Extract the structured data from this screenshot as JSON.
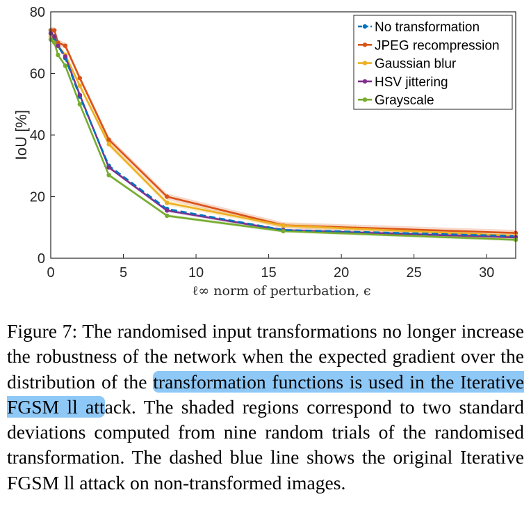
{
  "chart_data": {
    "type": "line",
    "xlabel": "ℓ∞ norm of perturbation, ϵ",
    "ylabel": "IoU [%]",
    "xlim": [
      0,
      32
    ],
    "ylim": [
      0,
      80
    ],
    "xticks": [
      0,
      5,
      10,
      15,
      20,
      25,
      30
    ],
    "yticks": [
      0,
      20,
      40,
      60,
      80
    ],
    "x": [
      0,
      0.25,
      0.5,
      1,
      2,
      4,
      8,
      16,
      32
    ],
    "legend_position": "top-right",
    "series": [
      {
        "name": "No transformation",
        "color": "#0072BD",
        "dashed": true,
        "values": [
          74,
          71.5,
          69,
          65,
          52.5,
          30,
          16,
          9.2,
          7.2
        ],
        "band": 0
      },
      {
        "name": "JPEG recompression",
        "color": "#D95319",
        "dashed": false,
        "values": [
          74,
          74,
          70,
          69,
          58.5,
          38.5,
          20,
          10.7,
          8.2
        ],
        "band": 1.0
      },
      {
        "name": "Gaussian blur",
        "color": "#EDB120",
        "dashed": false,
        "values": [
          72,
          72,
          69,
          66,
          56,
          37,
          18,
          10.6,
          7.3
        ],
        "band": 0.8
      },
      {
        "name": "HSV jittering",
        "color": "#7E2F8E",
        "dashed": false,
        "values": [
          73,
          72,
          69,
          65.5,
          53,
          29.5,
          15.5,
          9.1,
          6.8
        ],
        "band": 0.5
      },
      {
        "name": "Grayscale",
        "color": "#77AC30",
        "dashed": false,
        "values": [
          71,
          70,
          66,
          62.5,
          50,
          27,
          13.8,
          8.8,
          6.0
        ],
        "band": 0.5
      }
    ]
  },
  "caption": {
    "before": "Figure 7: The randomised input transformations no longer increase the robustness of the network when the expected gradient over the distribution of the ",
    "highlight": "transformation functions is used in the Iterative FGSM ll att",
    "after": "ack. The shaded regions correspond to two standard deviations computed from nine random trials of the randomised transformation. The dashed blue line shows the original Iterative FGSM ll attack on non-transformed images."
  }
}
